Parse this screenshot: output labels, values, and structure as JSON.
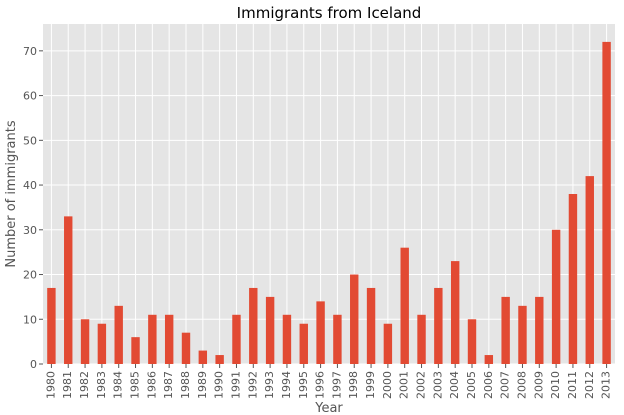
{
  "chart_data": {
    "type": "bar",
    "title": "Immigrants from Iceland",
    "xlabel": "Year",
    "ylabel": "Number of immigrants",
    "categories": [
      "1980",
      "1981",
      "1982",
      "1983",
      "1984",
      "1985",
      "1986",
      "1987",
      "1988",
      "1989",
      "1990",
      "1991",
      "1992",
      "1993",
      "1994",
      "1995",
      "1996",
      "1997",
      "1998",
      "1999",
      "2000",
      "2001",
      "2002",
      "2003",
      "2004",
      "2005",
      "2006",
      "2007",
      "2008",
      "2009",
      "2010",
      "2011",
      "2012",
      "2013"
    ],
    "values": [
      17,
      33,
      10,
      9,
      13,
      6,
      11,
      11,
      7,
      3,
      2,
      11,
      17,
      15,
      11,
      9,
      14,
      11,
      20,
      17,
      9,
      26,
      11,
      17,
      23,
      10,
      2,
      15,
      13,
      15,
      30,
      38,
      42,
      72
    ],
    "ylim": [
      0,
      76
    ],
    "yticks": [
      0,
      10,
      20,
      30,
      40,
      50,
      60,
      70
    ],
    "grid": true,
    "bar_color": "#E24A33",
    "plot_background": "#E5E5E5",
    "grid_color": "#FFFFFF"
  }
}
